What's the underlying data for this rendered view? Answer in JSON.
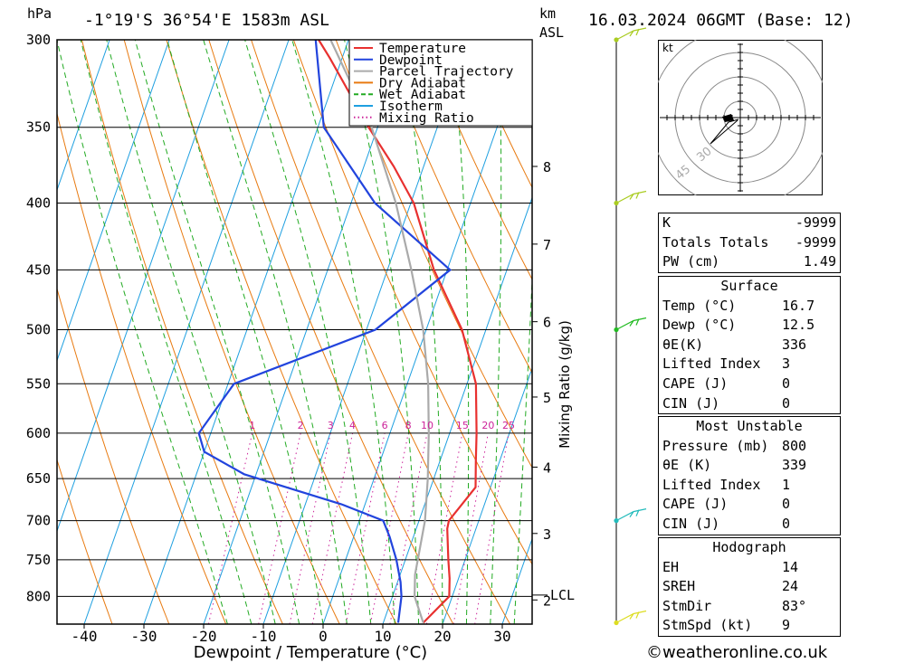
{
  "header": {
    "pressure_unit": "hPa",
    "location": "-1°19'S  36°54'E  1583m  ASL",
    "km_unit": "km",
    "asl_unit": "ASL",
    "datetime": "16.03.2024  06GMT  (Base: 12)"
  },
  "legend": {
    "items": [
      {
        "label": "Temperature",
        "color": "#e8302f",
        "style": "solid"
      },
      {
        "label": "Dewpoint",
        "color": "#2244dd",
        "style": "solid"
      },
      {
        "label": "Parcel Trajectory",
        "color": "#aaaaaa",
        "style": "solid"
      },
      {
        "label": "Dry Adiabat",
        "color": "#e87a10",
        "style": "solid"
      },
      {
        "label": "Wet Adiabat",
        "color": "#22aa22",
        "style": "dashed"
      },
      {
        "label": "Isotherm",
        "color": "#1e9fe0",
        "style": "solid"
      },
      {
        "label": "Mixing Ratio",
        "color": "#cc2299",
        "style": "dotted"
      }
    ]
  },
  "chart_data": {
    "type": "line",
    "title": "-1°19'S 36°54'E 1583m ASL",
    "xlabel": "Dewpoint / Temperature (°C)",
    "ylabel": "hPa",
    "ylabel_right": "Mixing Ratio (g/kg)",
    "xlim": [
      -45,
      35
    ],
    "ylim": [
      840,
      300
    ],
    "x_ticks": [
      -40,
      -30,
      -20,
      -10,
      0,
      10,
      20,
      30
    ],
    "pressure_levels": [
      300,
      350,
      400,
      450,
      500,
      550,
      600,
      650,
      700,
      750,
      800
    ],
    "km_levels": [
      {
        "km": 8,
        "p": 375
      },
      {
        "km": 7,
        "p": 430
      },
      {
        "km": 6,
        "p": 493
      },
      {
        "km": 5,
        "p": 563
      },
      {
        "km": 4,
        "p": 637
      },
      {
        "km": 3,
        "p": 716
      },
      {
        "km": 2,
        "p": 805
      }
    ],
    "lcl": {
      "label": "LCL",
      "p": 798
    },
    "mixing_ratio_labels": [
      1,
      2,
      3,
      4,
      6,
      8,
      10,
      15,
      20,
      25
    ],
    "series": [
      {
        "name": "Temperature",
        "points": [
          [
            16.7,
            838
          ],
          [
            19.5,
            800
          ],
          [
            18.5,
            775
          ],
          [
            17.2,
            750
          ],
          [
            15.2,
            710
          ],
          [
            15.0,
            700
          ],
          [
            17.5,
            660
          ],
          [
            16.0,
            630
          ],
          [
            14.5,
            600
          ],
          [
            11.5,
            550
          ],
          [
            6.0,
            500
          ],
          [
            -2.2,
            450
          ],
          [
            -9.5,
            400
          ],
          [
            -15.0,
            375
          ],
          [
            -21.5,
            350
          ],
          [
            -32.0,
            310
          ],
          [
            -35.0,
            300
          ]
        ]
      },
      {
        "name": "Dewpoint",
        "points": [
          [
            12.5,
            838
          ],
          [
            11.5,
            800
          ],
          [
            10.5,
            780
          ],
          [
            8.5,
            750
          ],
          [
            6.0,
            720
          ],
          [
            4.0,
            700
          ],
          [
            -4.0,
            680
          ],
          [
            -22.0,
            645
          ],
          [
            -30.0,
            620
          ],
          [
            -32.0,
            600
          ],
          [
            -29.0,
            550
          ],
          [
            -8.5,
            500
          ],
          [
            0.5,
            450
          ],
          [
            -16.0,
            400
          ],
          [
            -29.0,
            350
          ],
          [
            -35.5,
            300
          ]
        ]
      },
      {
        "name": "Parcel Trajectory",
        "points": [
          [
            16.7,
            838
          ],
          [
            13.7,
            800
          ],
          [
            12.5,
            770
          ],
          [
            11.0,
            700
          ],
          [
            9.0,
            650
          ],
          [
            6.5,
            600
          ],
          [
            3.5,
            550
          ],
          [
            -0.5,
            500
          ],
          [
            -6.0,
            450
          ],
          [
            -12.5,
            400
          ],
          [
            -21.0,
            350
          ],
          [
            -33.0,
            300
          ]
        ]
      }
    ],
    "wind_barbs": [
      {
        "p": 300,
        "color": "#aacc22"
      },
      {
        "p": 400,
        "color": "#aacc22"
      },
      {
        "p": 500,
        "color": "#22bb22"
      },
      {
        "p": 700,
        "color": "#22bbbb"
      },
      {
        "p": 838,
        "color": "#dddd22"
      }
    ]
  },
  "hodograph": {
    "unit": "kt",
    "ring_labels": [
      "30",
      "45"
    ]
  },
  "indices": {
    "rows": [
      {
        "label": "K",
        "value": "-9999"
      },
      {
        "label": "Totals Totals",
        "value": "-9999"
      },
      {
        "label": "PW (cm)",
        "value": "1.49"
      }
    ]
  },
  "surface": {
    "title": "Surface",
    "rows": [
      {
        "label": "Temp (°C)",
        "value": "16.7"
      },
      {
        "label": "Dewp (°C)",
        "value": "12.5"
      },
      {
        "label": "θE(K)",
        "value": "336"
      },
      {
        "label": "Lifted Index",
        "value": "3"
      },
      {
        "label": "CAPE (J)",
        "value": "0"
      },
      {
        "label": "CIN (J)",
        "value": "0"
      }
    ]
  },
  "most_unstable": {
    "title": "Most Unstable",
    "rows": [
      {
        "label": "Pressure (mb)",
        "value": "800"
      },
      {
        "label": "θE (K)",
        "value": "339"
      },
      {
        "label": "Lifted Index",
        "value": "1"
      },
      {
        "label": "CAPE (J)",
        "value": "0"
      },
      {
        "label": "CIN (J)",
        "value": "0"
      }
    ]
  },
  "hodograph_table": {
    "title": "Hodograph",
    "rows": [
      {
        "label": "EH",
        "value": "14"
      },
      {
        "label": "SREH",
        "value": "24"
      },
      {
        "label": "StmDir",
        "value": "83°"
      },
      {
        "label": "StmSpd (kt)",
        "value": "9"
      }
    ]
  },
  "footer": {
    "copyright": "©weatheronline.co.uk"
  }
}
